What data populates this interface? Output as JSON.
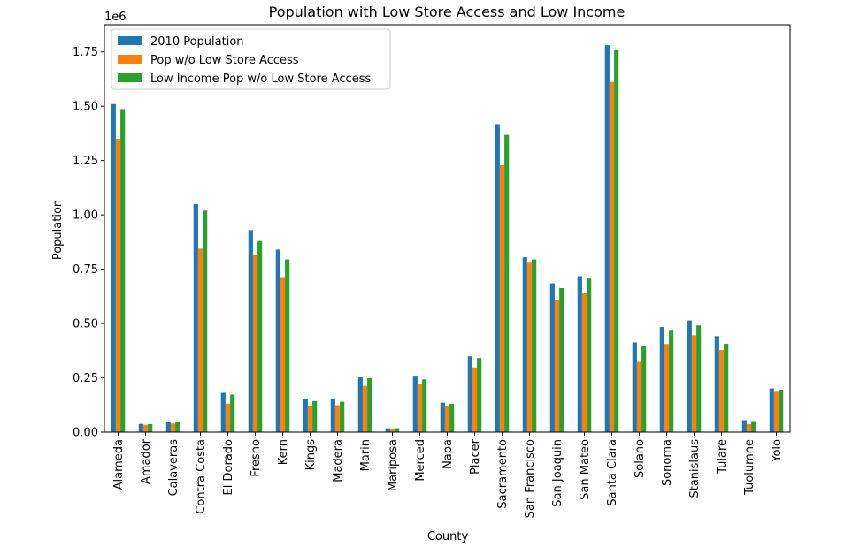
{
  "chart_data": {
    "type": "bar",
    "title": "Population with Low Store Access and Low Income",
    "xlabel": "County",
    "ylabel": "Population",
    "y_offset_label": "1e6",
    "ylim": [
      0,
      1.875
    ],
    "yticks": [
      "0.00",
      "0.25",
      "0.50",
      "0.75",
      "1.00",
      "1.25",
      "1.50",
      "1.75"
    ],
    "legend_position": "upper-left",
    "grid": false,
    "categories": [
      "Alameda",
      "Amador",
      "Calaveras",
      "Contra Costa",
      "El Dorado",
      "Fresno",
      "Kern",
      "Kings",
      "Madera",
      "Marin",
      "Mariposa",
      "Merced",
      "Napa",
      "Placer",
      "Sacramento",
      "San Francisco",
      "San Joaquin",
      "San Mateo",
      "Santa Clara",
      "Solano",
      "Sonoma",
      "Stanislaus",
      "Tulare",
      "Tuolumne",
      "Yolo"
    ],
    "series": [
      {
        "name": "2010 Population",
        "color": "#1f77b4",
        "values": [
          1.51,
          0.038,
          0.045,
          1.05,
          0.181,
          0.93,
          0.84,
          0.152,
          0.151,
          0.252,
          0.018,
          0.256,
          0.136,
          0.349,
          1.418,
          0.805,
          0.685,
          0.718,
          1.781,
          0.413,
          0.484,
          0.514,
          0.442,
          0.055,
          0.201
        ]
      },
      {
        "name": "Pop w/o Low Store Access",
        "color": "#ff7f0e",
        "values": [
          1.35,
          0.034,
          0.04,
          0.845,
          0.131,
          0.815,
          0.71,
          0.12,
          0.124,
          0.213,
          0.014,
          0.221,
          0.119,
          0.298,
          1.228,
          0.78,
          0.61,
          0.638,
          1.612,
          0.323,
          0.406,
          0.446,
          0.378,
          0.037,
          0.186
        ]
      },
      {
        "name": "Low Income Pop w/o Low Store Access",
        "color": "#2ca02c",
        "values": [
          1.487,
          0.037,
          0.045,
          1.02,
          0.173,
          0.88,
          0.795,
          0.143,
          0.14,
          0.249,
          0.018,
          0.243,
          0.13,
          0.341,
          1.368,
          0.795,
          0.663,
          0.707,
          1.758,
          0.398,
          0.467,
          0.491,
          0.407,
          0.051,
          0.195
        ]
      }
    ]
  }
}
